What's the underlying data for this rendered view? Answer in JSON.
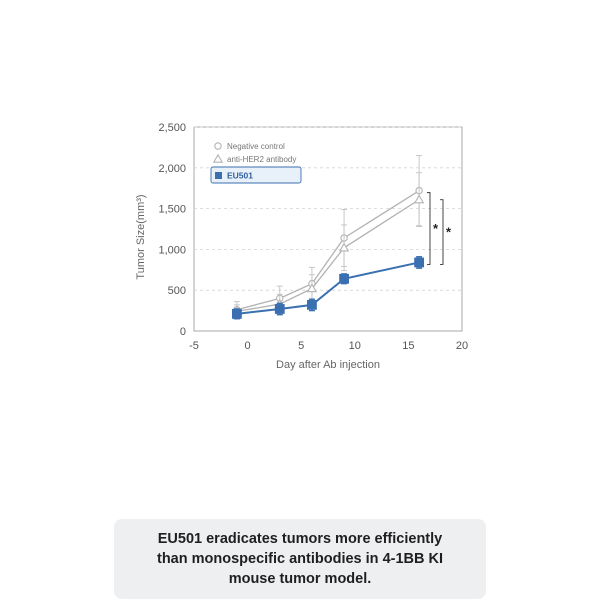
{
  "chart_data": {
    "type": "line",
    "xlabel": "Day after Ab injection",
    "ylabel": "Tumor Size(mm³)",
    "xlim": [
      -5,
      20
    ],
    "ylim": [
      0,
      2500
    ],
    "x_ticks": [
      -5,
      0,
      5,
      10,
      15,
      20
    ],
    "x_tick_labels": [
      "-5",
      "0",
      "5",
      "10",
      "15",
      "20"
    ],
    "y_ticks": [
      0,
      500,
      1000,
      1500,
      2000,
      2500
    ],
    "y_tick_labels": [
      "0",
      "500",
      "1,000",
      "1,500",
      "2,000",
      "2,500"
    ],
    "grid": "horizontal dashed",
    "legend_position": "top-left",
    "series": [
      {
        "name": "Negative control",
        "marker": "circle-open",
        "color": "#b3b3b3",
        "x": [
          -1,
          3,
          6,
          9,
          16
        ],
        "y": [
          260,
          400,
          580,
          1140,
          1720
        ],
        "err": [
          100,
          150,
          200,
          350,
          430
        ]
      },
      {
        "name": "anti-HER2 antibody",
        "marker": "triangle-open",
        "color": "#b3b3b3",
        "x": [
          -1,
          3,
          6,
          9,
          16
        ],
        "y": [
          240,
          330,
          520,
          1020,
          1610
        ],
        "err": [
          80,
          120,
          170,
          280,
          330
        ]
      },
      {
        "name": "EU501",
        "marker": "square-filled",
        "color": "#3a6fb0",
        "x": [
          -1,
          3,
          6,
          9,
          16
        ],
        "y": [
          210,
          270,
          320,
          640,
          840
        ],
        "err": [
          60,
          70,
          70,
          60,
          70
        ]
      }
    ],
    "annotations": [
      {
        "text": "*",
        "between": [
          "Negative control",
          "EU501"
        ]
      },
      {
        "text": "*",
        "between": [
          "anti-HER2 antibody",
          "EU501"
        ]
      }
    ]
  },
  "caption": {
    "lines": [
      "EU501 eradicates tumors more efficiently",
      "than monospecific antibodies in 4-1BB KI",
      "mouse tumor model."
    ]
  }
}
